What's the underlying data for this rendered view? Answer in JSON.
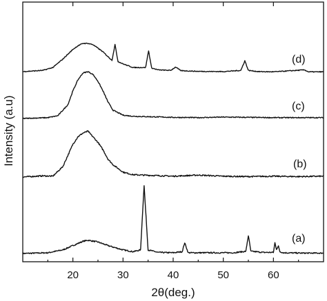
{
  "chart_data": {
    "type": "line",
    "title": "",
    "xlabel": "2θ(deg.)",
    "ylabel": "Intensity (a.u)",
    "xlim": [
      10,
      70
    ],
    "x_ticks": [
      20,
      30,
      40,
      50,
      60
    ],
    "x_tick_labels": [
      "20",
      "30",
      "40",
      "50",
      "60"
    ],
    "y_ticks_labeled": false,
    "grid": false,
    "legend": "inline labels at right",
    "series": [
      {
        "label": "(a)",
        "x": [
          10,
          15,
          18,
          20,
          22,
          23,
          25,
          27,
          30,
          32,
          33.5,
          34.2,
          35,
          37,
          40,
          41.8,
          42.3,
          43,
          47,
          52,
          54.5,
          55,
          55.5,
          58,
          60,
          60.3,
          60.6,
          61,
          61.3,
          62,
          66,
          70
        ],
        "y": [
          0.0,
          0.2,
          1.0,
          2.2,
          3.4,
          3.7,
          3.2,
          2.2,
          1.0,
          0.5,
          1.0,
          19.0,
          1.0,
          0.3,
          0.2,
          0.5,
          3.0,
          0.2,
          0.2,
          0.2,
          0.6,
          5.0,
          0.6,
          0.3,
          0.3,
          3.0,
          1.2,
          2.0,
          0.5,
          0.2,
          0.1,
          0.1
        ]
      },
      {
        "label": "(b)",
        "x": [
          10,
          14,
          16,
          18,
          20,
          21,
          22,
          23,
          24,
          25,
          26,
          27,
          28,
          29,
          30,
          32,
          36,
          40,
          45,
          50,
          55,
          60,
          65,
          70
        ],
        "y": [
          0.2,
          0.5,
          0.4,
          3.0,
          9.0,
          11.0,
          12.0,
          12.5,
          11.0,
          9.5,
          7.5,
          5.0,
          3.5,
          2.5,
          1.5,
          0.8,
          0.6,
          0.4,
          0.7,
          0.4,
          0.3,
          0.4,
          0.3,
          0.4
        ]
      },
      {
        "label": "(c)",
        "x": [
          10,
          15,
          17,
          19,
          20,
          21,
          22,
          23,
          24,
          25,
          26,
          27,
          28,
          30,
          32,
          36,
          40,
          45,
          50,
          55,
          60,
          65,
          70
        ],
        "y": [
          0.0,
          0.3,
          1.0,
          5.0,
          10.0,
          14.0,
          16.5,
          17.0,
          16.0,
          13.5,
          10.0,
          6.0,
          3.0,
          1.2,
          0.8,
          0.6,
          0.4,
          0.3,
          0.5,
          0.4,
          0.3,
          0.3,
          0.3
        ]
      },
      {
        "label": "(d)",
        "x": [
          10,
          14,
          16,
          18,
          20,
          21,
          22,
          23,
          24,
          25,
          26,
          27,
          27.8,
          28.4,
          29,
          30,
          32,
          34.5,
          35.1,
          35.7,
          37,
          39.5,
          40.5,
          41.5,
          45,
          50,
          53.5,
          54.3,
          55,
          57,
          60,
          66.2,
          67,
          70
        ],
        "y": [
          0.3,
          0.8,
          2.0,
          5.5,
          9.5,
          11.0,
          12.0,
          12.0,
          11.5,
          10.0,
          8.5,
          6.5,
          5.0,
          11.5,
          4.5,
          3.5,
          2.0,
          2.0,
          9.0,
          1.8,
          1.0,
          0.8,
          2.2,
          0.7,
          0.4,
          0.3,
          0.8,
          4.8,
          0.8,
          0.3,
          0.2,
          1.0,
          0.2,
          0.2
        ]
      }
    ]
  }
}
